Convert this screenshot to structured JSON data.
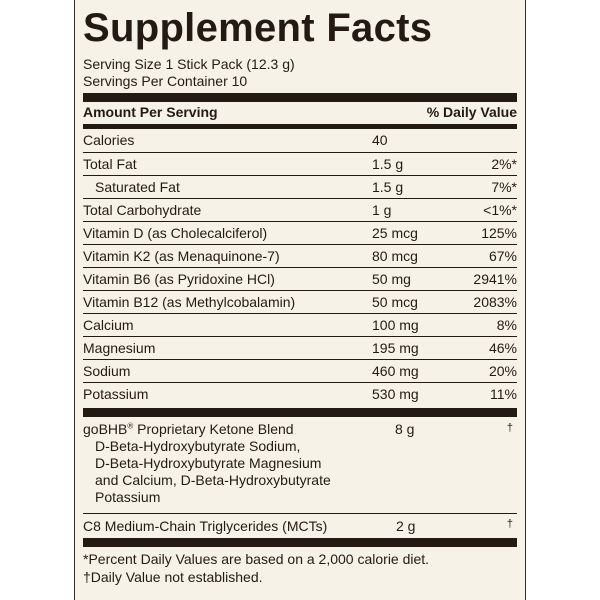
{
  "title": "Supplement Facts",
  "serving_size": "Serving Size 1 Stick Pack (12.3 g)",
  "servings_per_container": "Servings Per Container 10",
  "header": {
    "amount": "Amount Per Serving",
    "dv": "% Daily Value"
  },
  "nutrients": [
    {
      "name": "Calories",
      "amount": "40",
      "dv": ""
    },
    {
      "name": "Total Fat",
      "amount": "1.5 g",
      "dv": "2%*"
    },
    {
      "name": "Saturated Fat",
      "amount": "1.5 g",
      "dv": "7%*"
    },
    {
      "name": "Total Carbohydrate",
      "amount": "1 g",
      "dv": "<1%*"
    },
    {
      "name": "Vitamin D (as Cholecalciferol)",
      "amount": "25 mcg",
      "dv": "125%"
    },
    {
      "name": "Vitamin K2 (as Menaquinone-7)",
      "amount": "80 mcg",
      "dv": "67%"
    },
    {
      "name": "Vitamin B6 (as Pyridoxine HCl)",
      "amount": "50 mg",
      "dv": "2941%"
    },
    {
      "name": "Vitamin B12 (as Methylcobalamin)",
      "amount": "50 mcg",
      "dv": "2083%"
    },
    {
      "name": "Calcium",
      "amount": "100 mg",
      "dv": "8%"
    },
    {
      "name": "Magnesium",
      "amount": "195 mg",
      "dv": "46%"
    },
    {
      "name": "Sodium",
      "amount": "460 mg",
      "dv": "20%"
    },
    {
      "name": "Potassium",
      "amount": "530 mg",
      "dv": "11%"
    }
  ],
  "blend": {
    "name": "goBHB",
    "reg": "®",
    "name_suffix": " Proprietary Ketone Blend",
    "lines": [
      "D-Beta-Hydroxybutyrate Sodium,",
      "D-Beta-Hydroxybutyrate Magnesium",
      "and Calcium, D-Beta-Hydroxybutyrate",
      "Potassium"
    ],
    "amount": "8 g",
    "dv": "†"
  },
  "mct": {
    "name": "C8 Medium-Chain Triglycerides (MCTs)",
    "amount": "2 g",
    "dv": "†"
  },
  "footnotes": [
    "*Percent Daily Values are based on a 2,000 calorie diet.",
    "†Daily Value not established."
  ]
}
